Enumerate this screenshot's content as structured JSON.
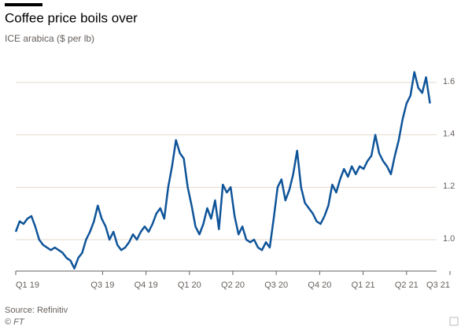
{
  "chart_data": {
    "type": "line",
    "title": "Coffee price boils over",
    "subtitle": "ICE arabica ($ per lb)",
    "source": "Source: Refinitiv",
    "credit": "© FT",
    "xlim": [
      0,
      10
    ],
    "xticks": [
      {
        "value": 0,
        "label": "Q1 19"
      },
      {
        "value": 2,
        "label": "Q3 19"
      },
      {
        "value": 3,
        "label": "Q4 19"
      },
      {
        "value": 4,
        "label": "Q1 20"
      },
      {
        "value": 5,
        "label": "Q2 20"
      },
      {
        "value": 6,
        "label": "Q3 20"
      },
      {
        "value": 7,
        "label": "Q4 20"
      },
      {
        "value": 8,
        "label": "Q1 21"
      },
      {
        "value": 9,
        "label": "Q2 21"
      },
      {
        "value": 10,
        "label": "Q3 21"
      }
    ],
    "ylim": [
      0.88,
      1.66
    ],
    "yticks": [
      {
        "value": 1,
        "label": "1.0"
      },
      1.2,
      1.4,
      1.6
    ],
    "grid": true,
    "x": [
      0,
      0.09,
      0.18,
      0.27,
      0.36,
      0.45,
      0.54,
      0.63,
      0.72,
      0.81,
      0.9,
      0.99,
      1.08,
      1.17,
      1.26,
      1.35,
      1.44,
      1.53,
      1.62,
      1.71,
      1.8,
      1.89,
      1.98,
      2.07,
      2.16,
      2.25,
      2.34,
      2.43,
      2.52,
      2.61,
      2.7,
      2.79,
      2.88,
      2.97,
      3.06,
      3.15,
      3.24,
      3.33,
      3.42,
      3.51,
      3.6,
      3.69,
      3.78,
      3.87,
      3.96,
      4.05,
      4.14,
      4.23,
      4.32,
      4.41,
      4.5,
      4.59,
      4.68,
      4.77,
      4.86,
      4.95,
      5.04,
      5.13,
      5.22,
      5.31,
      5.4,
      5.49,
      5.58,
      5.67,
      5.76,
      5.85,
      5.94,
      6.03,
      6.12,
      6.21,
      6.3,
      6.39,
      6.48,
      6.57,
      6.66,
      6.75,
      6.84,
      6.93,
      7.02,
      7.11,
      7.2,
      7.29,
      7.38,
      7.47,
      7.56,
      7.65,
      7.74,
      7.83,
      7.92,
      8.01,
      8.1,
      8.19,
      8.28,
      8.37,
      8.46,
      8.55,
      8.64,
      8.73,
      8.82,
      8.91,
      9.0,
      9.09,
      9.18,
      9.27,
      9.36,
      9.45,
      9.54
    ],
    "series": [
      {
        "color": "#0f5499",
        "values": [
          1.03,
          1.07,
          1.06,
          1.08,
          1.09,
          1.05,
          1.0,
          0.98,
          0.97,
          0.96,
          0.97,
          0.96,
          0.95,
          0.93,
          0.92,
          0.89,
          0.93,
          0.95,
          1.0,
          1.03,
          1.07,
          1.13,
          1.08,
          1.05,
          1.0,
          1.03,
          0.98,
          0.96,
          0.97,
          0.99,
          1.02,
          1.0,
          1.03,
          1.05,
          1.03,
          1.06,
          1.1,
          1.12,
          1.08,
          1.2,
          1.28,
          1.38,
          1.33,
          1.31,
          1.2,
          1.13,
          1.05,
          1.02,
          1.06,
          1.12,
          1.08,
          1.15,
          1.04,
          1.21,
          1.18,
          1.2,
          1.09,
          1.02,
          1.05,
          1.0,
          0.99,
          1.0,
          0.97,
          0.96,
          0.99,
          0.97,
          1.08,
          1.2,
          1.23,
          1.15,
          1.19,
          1.25,
          1.34,
          1.2,
          1.14,
          1.12,
          1.1,
          1.07,
          1.06,
          1.09,
          1.13,
          1.21,
          1.18,
          1.23,
          1.27,
          1.24,
          1.28,
          1.25,
          1.28,
          1.27,
          1.3,
          1.32,
          1.4,
          1.33,
          1.3,
          1.28,
          1.25,
          1.32,
          1.38,
          1.46,
          1.52,
          1.55,
          1.64,
          1.58,
          1.56,
          1.62,
          1.52
        ]
      }
    ]
  }
}
